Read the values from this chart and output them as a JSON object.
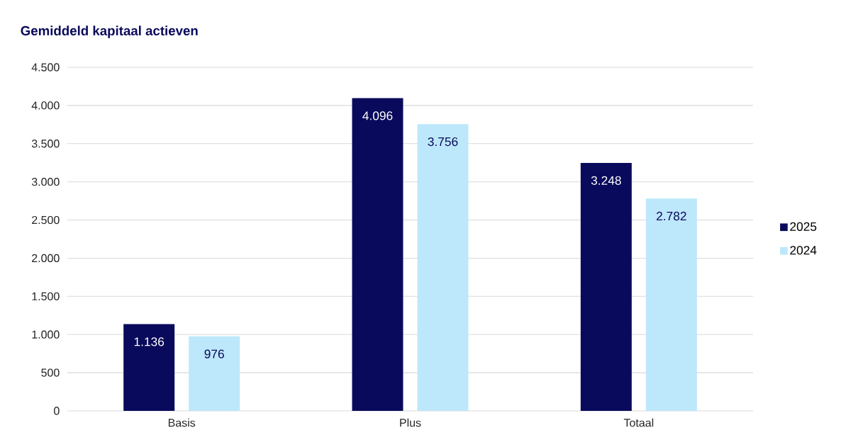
{
  "chart_data": {
    "type": "bar",
    "title": "Gemiddeld kapitaal actieven",
    "categories": [
      "Basis",
      "Plus",
      "Totaal"
    ],
    "series": [
      {
        "name": "2025",
        "color": "#0a0a5c",
        "values": [
          1136,
          4096,
          3248
        ],
        "value_labels": [
          "1.136",
          "4.096",
          "3.248"
        ]
      },
      {
        "name": "2024",
        "color": "#bde8fb",
        "values": [
          976,
          3756,
          2782
        ],
        "value_labels": [
          "976",
          "3.756",
          "2.782"
        ]
      }
    ],
    "ylim": [
      0,
      4500
    ],
    "yticks": [
      0,
      500,
      {
        "value": 1000,
        "label": "1.000"
      },
      {
        "value": 1500,
        "label": "1.500"
      },
      {
        "value": 2000,
        "label": "2.000"
      },
      {
        "value": 2500,
        "label": "2.500"
      },
      {
        "value": 3000,
        "label": "3.000"
      },
      {
        "value": 3500,
        "label": "3.500"
      },
      {
        "value": 4000,
        "label": "4.000"
      },
      {
        "value": 4500,
        "label": "4.500"
      }
    ],
    "grid": "y",
    "legend": "right"
  }
}
